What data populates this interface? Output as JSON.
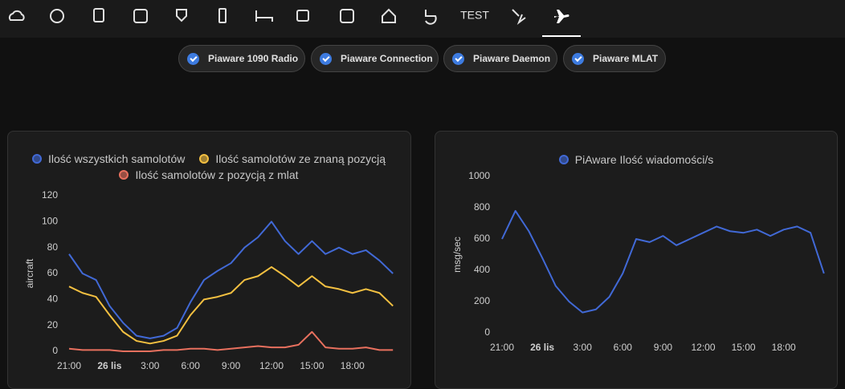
{
  "header": {
    "text_tab": "TEST"
  },
  "chips": [
    "Piaware 1090 Radio",
    "Piaware Connection",
    "Piaware Daemon",
    "Piaware MLAT"
  ],
  "chart_data": [
    {
      "type": "line",
      "y_label": "aircraft",
      "categories": [
        "21:00",
        null,
        null,
        "26 lis",
        null,
        null,
        "3:00",
        null,
        null,
        "6:00",
        null,
        null,
        "9:00",
        null,
        null,
        "12:00",
        null,
        null,
        "15:00",
        null,
        null,
        "18:00",
        null,
        null,
        null
      ],
      "ylim": [
        0,
        120
      ],
      "yticks": [
        0,
        20,
        40,
        60,
        80,
        100,
        120
      ],
      "series": [
        {
          "name": "Ilość wszystkich samolotów",
          "color": "#4169d6",
          "values": [
            75,
            60,
            55,
            35,
            22,
            12,
            10,
            12,
            18,
            38,
            55,
            62,
            68,
            80,
            88,
            100,
            85,
            75,
            85,
            75,
            80,
            75,
            78,
            70,
            60
          ]
        },
        {
          "name": "Ilość samolotów ze znaną pozycją",
          "color": "#f3c041",
          "values": [
            50,
            45,
            42,
            28,
            15,
            8,
            6,
            8,
            12,
            28,
            40,
            42,
            45,
            55,
            58,
            65,
            58,
            50,
            58,
            50,
            48,
            45,
            48,
            45,
            35
          ]
        },
        {
          "name": "Ilość samolotów z pozycją z mlat",
          "color": "#e8705e",
          "values": [
            2,
            1,
            1,
            1,
            0,
            0,
            0,
            1,
            1,
            2,
            2,
            1,
            2,
            3,
            4,
            3,
            3,
            5,
            15,
            3,
            2,
            2,
            3,
            1,
            1
          ]
        }
      ]
    },
    {
      "type": "line",
      "y_label": "msg/sec",
      "categories": [
        "21:00",
        null,
        null,
        "26 lis",
        null,
        null,
        "3:00",
        null,
        null,
        "6:00",
        null,
        null,
        "9:00",
        null,
        null,
        "12:00",
        null,
        null,
        "15:00",
        null,
        null,
        "18:00",
        null,
        null,
        null
      ],
      "ylim": [
        0,
        1000
      ],
      "yticks": [
        0,
        200,
        400,
        600,
        800,
        1000
      ],
      "series": [
        {
          "name": "PiAware Ilość wiadomości/s",
          "color": "#4169d6",
          "values": [
            600,
            780,
            650,
            480,
            300,
            200,
            130,
            150,
            230,
            380,
            600,
            580,
            620,
            560,
            600,
            640,
            680,
            650,
            640,
            660,
            620,
            660,
            680,
            640,
            380
          ]
        }
      ]
    }
  ]
}
